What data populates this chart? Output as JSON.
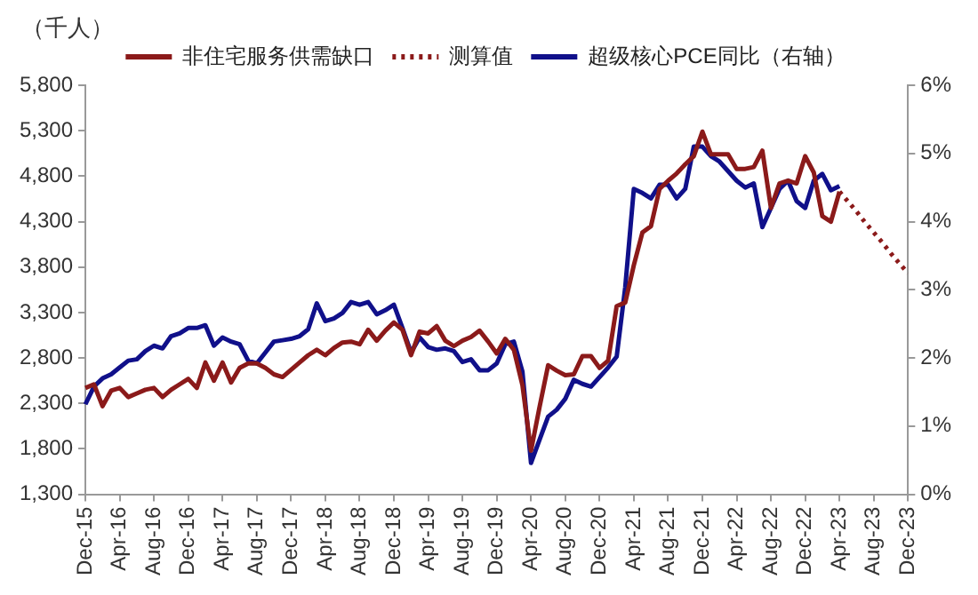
{
  "chart_data": {
    "type": "line",
    "ylabel": "（千人）",
    "legend": "top",
    "grid": false,
    "marker": "none",
    "categories": [
      "Dec-15",
      null,
      null,
      null,
      "Apr-16",
      null,
      null,
      null,
      "Aug-16",
      null,
      null,
      null,
      "Dec-16",
      null,
      null,
      null,
      "Apr-17",
      null,
      null,
      null,
      "Aug-17",
      null,
      null,
      null,
      "Dec-17",
      null,
      null,
      null,
      "Apr-18",
      null,
      null,
      null,
      "Aug-18",
      null,
      null,
      null,
      "Dec-18",
      null,
      null,
      null,
      "Apr-19",
      null,
      null,
      null,
      "Aug-19",
      null,
      null,
      null,
      "Dec-19",
      null,
      null,
      null,
      "Apr-20",
      null,
      null,
      null,
      "Aug-20",
      null,
      null,
      null,
      "Dec-20",
      null,
      null,
      null,
      "Apr-21",
      null,
      null,
      null,
      "Aug-21",
      null,
      null,
      null,
      "Dec-21",
      null,
      null,
      null,
      "Apr-22",
      null,
      null,
      null,
      "Aug-22",
      null,
      null,
      null,
      "Dec-22",
      null,
      null,
      null,
      "Apr-23",
      null,
      null,
      null,
      "Aug-23",
      null,
      null,
      null,
      "Dec-23"
    ],
    "ylim": [
      1300,
      5800
    ],
    "yticks": [
      {
        "value": 1300,
        "label": "1,300"
      },
      {
        "value": 1800,
        "label": "1,800"
      },
      {
        "value": 2300,
        "label": "2,300"
      },
      {
        "value": 2800,
        "label": "2,800"
      },
      {
        "value": 3300,
        "label": "3,300"
      },
      {
        "value": 3800,
        "label": "3,800"
      },
      {
        "value": 4300,
        "label": "4,300"
      },
      {
        "value": 4800,
        "label": "4,800"
      },
      {
        "value": 5300,
        "label": "5,300"
      },
      {
        "value": 5800,
        "label": "5,800"
      }
    ],
    "y2lim": [
      0,
      6
    ],
    "y2ticks": [
      {
        "value": 0,
        "label": "0%"
      },
      {
        "value": 1,
        "label": "1%"
      },
      {
        "value": 2,
        "label": "2%"
      },
      {
        "value": 3,
        "label": "3%"
      },
      {
        "value": 4,
        "label": "4%"
      },
      {
        "value": 5,
        "label": "5%"
      },
      {
        "value": 6,
        "label": "6%"
      }
    ],
    "series": [
      {
        "name": "非住宅服务供需缺口",
        "color": "#8b1a1a",
        "line_style": "solid",
        "values": [
          2470,
          2510,
          2270,
          2440,
          2470,
          2370,
          2410,
          2450,
          2470,
          2370,
          2450,
          2510,
          2570,
          2470,
          2750,
          2550,
          2750,
          2530,
          2690,
          2740,
          2740,
          2690,
          2620,
          2590,
          2670,
          2750,
          2830,
          2890,
          2830,
          2910,
          2970,
          2980,
          2950,
          3110,
          2990,
          3100,
          3190,
          3110,
          2830,
          3090,
          3070,
          3150,
          2990,
          2930,
          2990,
          3030,
          3100,
          2980,
          2850,
          3010,
          2890,
          2500,
          1780,
          2260,
          2720,
          2660,
          2610,
          2620,
          2820,
          2820,
          2690,
          2770,
          3370,
          3410,
          3820,
          4180,
          4250,
          4660,
          4750,
          4830,
          4930,
          5020,
          5290,
          5040,
          5040,
          5040,
          4880,
          4880,
          4900,
          5080,
          4450,
          4720,
          4750,
          4720,
          5020,
          4840,
          4360,
          4300,
          4630,
          null,
          null,
          null,
          null,
          null,
          null,
          null,
          null
        ]
      },
      {
        "name": "测算值",
        "color": "#8b1a1a",
        "line_style": "dotted",
        "values": [
          null,
          null,
          null,
          null,
          null,
          null,
          null,
          null,
          null,
          null,
          null,
          null,
          null,
          null,
          null,
          null,
          null,
          null,
          null,
          null,
          null,
          null,
          null,
          null,
          null,
          null,
          null,
          null,
          null,
          null,
          null,
          null,
          null,
          null,
          null,
          null,
          null,
          null,
          null,
          null,
          null,
          null,
          null,
          null,
          null,
          null,
          null,
          null,
          null,
          null,
          null,
          null,
          null,
          null,
          null,
          null,
          null,
          null,
          null,
          null,
          null,
          null,
          null,
          null,
          null,
          null,
          null,
          null,
          null,
          null,
          null,
          null,
          null,
          null,
          null,
          null,
          null,
          null,
          null,
          null,
          null,
          null,
          null,
          null,
          null,
          null,
          null,
          null,
          4630,
          4520,
          4410,
          4290,
          4180,
          4070,
          3950,
          3840,
          3730
        ]
      },
      {
        "name": "超级核心PCE同比（右轴）",
        "color": "#10108a",
        "line_style": "solid",
        "axis": "y2",
        "values": [
          1.32,
          1.58,
          1.7,
          1.76,
          1.86,
          1.96,
          1.98,
          2.1,
          2.18,
          2.14,
          2.32,
          2.36,
          2.44,
          2.44,
          2.48,
          2.18,
          2.3,
          2.24,
          2.2,
          1.96,
          1.92,
          2.08,
          2.24,
          2.26,
          2.28,
          2.32,
          2.42,
          2.8,
          2.54,
          2.58,
          2.66,
          2.82,
          2.78,
          2.82,
          2.64,
          2.7,
          2.78,
          2.44,
          2.08,
          2.3,
          2.16,
          2.12,
          2.14,
          2.1,
          1.94,
          1.98,
          1.82,
          1.82,
          1.92,
          2.2,
          2.24,
          1.8,
          0.46,
          0.8,
          1.14,
          1.24,
          1.4,
          1.68,
          1.62,
          1.58,
          1.72,
          1.86,
          2.02,
          3.04,
          4.48,
          4.42,
          4.34,
          4.54,
          4.54,
          4.34,
          4.48,
          5.1,
          5.1,
          4.96,
          4.88,
          4.74,
          4.6,
          4.5,
          4.56,
          3.92,
          4.2,
          4.48,
          4.6,
          4.3,
          4.2,
          4.6,
          4.7,
          4.46,
          4.52,
          null,
          null,
          null,
          null,
          null,
          null,
          null,
          null
        ]
      }
    ]
  }
}
